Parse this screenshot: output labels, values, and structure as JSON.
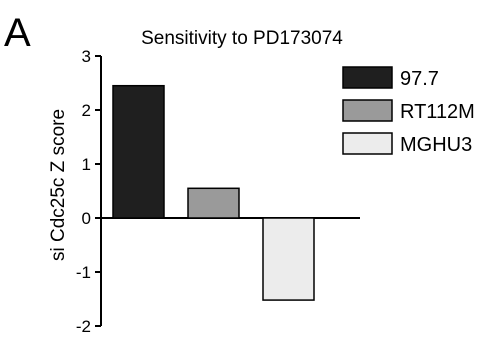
{
  "panel_label": "A",
  "chart_data": {
    "type": "bar",
    "title": "Sensitivity to PD173074",
    "ylabel": "si Cdc25c Z score",
    "xlabel": "",
    "ylim": [
      -2,
      3
    ],
    "yticks": [
      3,
      2,
      1,
      0,
      -1,
      -2
    ],
    "grid": false,
    "legend_position": "right",
    "categories": [
      "97.7",
      "RT112M",
      "MGHU3"
    ],
    "values": [
      2.45,
      0.55,
      -1.52
    ],
    "colors": [
      "#1f1f1f",
      "#9a9a9a",
      "#ececec"
    ]
  }
}
